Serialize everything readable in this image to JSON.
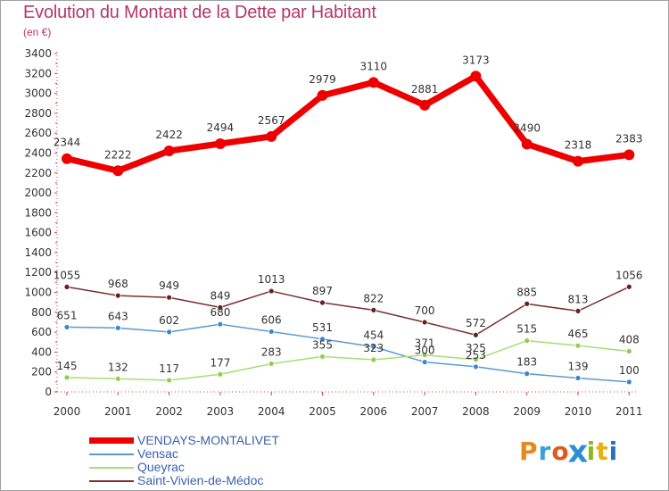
{
  "title": "Evolution du Montant de la Dette par Habitant",
  "subtitle": "(en €)",
  "logo_text": "Proxiti",
  "colors": {
    "title": "#b5376a",
    "legend_text": "#3a5fb0",
    "logo": [
      "#e88a1a",
      "#3aa0d8",
      "#e05a1a",
      "#2f8fd0",
      "#8ab822",
      "#e8b010",
      "#2b70c0"
    ]
  },
  "chart_data": {
    "type": "line",
    "title": "Evolution du Montant de la Dette par Habitant",
    "subtitle": "(en €)",
    "x": [
      "2000",
      "2001",
      "2002",
      "2003",
      "2004",
      "2005",
      "2006",
      "2007",
      "2008",
      "2009",
      "2010",
      "2011"
    ],
    "ylim": [
      0,
      3400
    ],
    "yticks": [
      0,
      200,
      400,
      600,
      800,
      1000,
      1200,
      1400,
      1600,
      1800,
      2000,
      2200,
      2400,
      2600,
      2800,
      3000,
      3200,
      3400
    ],
    "grid": false,
    "legend_position": "bottom-left",
    "series": [
      {
        "name": "VENDAYS-MONTALIVET",
        "color": "#ee0000",
        "marker": "#ee0000",
        "width": 7,
        "radius": 6,
        "values": [
          2344,
          2222,
          2422,
          2494,
          2567,
          2979,
          3110,
          2881,
          3173,
          2490,
          2318,
          2383
        ]
      },
      {
        "name": "Vensac",
        "color": "#5a9ad0",
        "marker": "#3a86d0",
        "width": 1.5,
        "radius": 3,
        "values": [
          651,
          643,
          602,
          680,
          606,
          531,
          454,
          300,
          253,
          183,
          139,
          100
        ]
      },
      {
        "name": "Queyrac",
        "color": "#a8dc78",
        "marker": "#8cd04a",
        "width": 1.5,
        "radius": 3,
        "values": [
          145,
          132,
          117,
          177,
          283,
          355,
          323,
          371,
          325,
          515,
          465,
          408
        ]
      },
      {
        "name": "Saint-Vivien-de-Médoc",
        "color": "#7a2e2e",
        "marker": "#6a1e1e",
        "width": 1.5,
        "radius": 3,
        "values": [
          1055,
          968,
          949,
          849,
          1013,
          897,
          822,
          700,
          572,
          885,
          813,
          1056
        ]
      }
    ]
  }
}
